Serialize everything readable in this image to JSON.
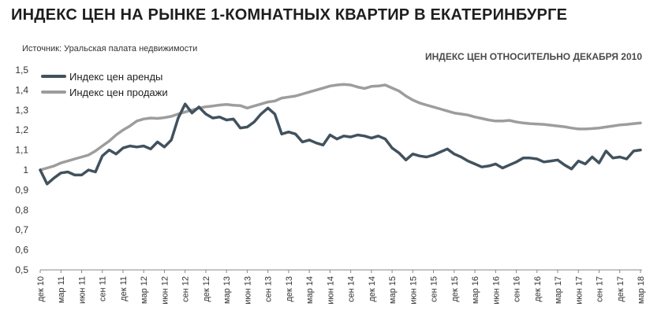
{
  "header": {
    "title": "ИНДЕКС ЦЕН НА РЫНКЕ 1-КОМНАТНЫХ КВАРТИР В ЕКАТЕРИНБУРГЕ",
    "source": "Источник: Уральская палата недвижимости",
    "subtitle": "ИНДЕКС ЦЕН ОТНОСИТЕЛЬНО ДЕКАБРЯ 2010"
  },
  "chart_data": {
    "type": "line",
    "title": "ИНДЕКС ЦЕН НА РЫНКЕ 1-КОМНАТНЫХ КВАРТИР В ЕКАТЕРИНБУРГЕ",
    "subtitle": "ИНДЕКС ЦЕН ОТНОСИТЕЛЬНО ДЕКАБРЯ 2010",
    "xlabel": "",
    "ylabel": "",
    "ylim": [
      0.5,
      1.5
    ],
    "yticks": [
      0.5,
      0.6,
      0.7,
      0.8,
      0.9,
      1.0,
      1.1,
      1.2,
      1.3,
      1.4,
      1.5
    ],
    "ytick_labels": [
      "0,5",
      "0,6",
      "0,7",
      "0,8",
      "0,9",
      "1",
      "1,1",
      "1,2",
      "1,3",
      "1,4",
      "1,5"
    ],
    "grid": false,
    "legend_position": "top-left",
    "x_tick_labels": [
      "дек 10",
      "мар 11",
      "июн 11",
      "сен 11",
      "дек 11",
      "мар 12",
      "июн 12",
      "сен 12",
      "дек 12",
      "мар 13",
      "июн 13",
      "сен 13",
      "дек 13",
      "мар 14",
      "июн 14",
      "сен 14",
      "дек 14",
      "мар 15",
      "июн 15",
      "сен 15",
      "дек 15",
      "мар 16",
      "июн 16",
      "сен 16",
      "дек 16",
      "мар 17",
      "июн 17",
      "сен 17",
      "дек 17",
      "мар 18"
    ],
    "x_tick_every_months": 3,
    "x_months_total": 87,
    "series": [
      {
        "name": "Индекс цен аренды",
        "color": "#41525e",
        "values": [
          1.0,
          0.93,
          0.96,
          0.985,
          0.99,
          0.975,
          0.975,
          1.0,
          0.99,
          1.07,
          1.1,
          1.08,
          1.11,
          1.12,
          1.115,
          1.12,
          1.105,
          1.14,
          1.115,
          1.15,
          1.26,
          1.33,
          1.285,
          1.315,
          1.28,
          1.26,
          1.265,
          1.25,
          1.255,
          1.21,
          1.215,
          1.24,
          1.28,
          1.31,
          1.28,
          1.18,
          1.19,
          1.18,
          1.14,
          1.15,
          1.135,
          1.125,
          1.175,
          1.155,
          1.17,
          1.165,
          1.175,
          1.17,
          1.16,
          1.17,
          1.155,
          1.11,
          1.085,
          1.05,
          1.08,
          1.07,
          1.065,
          1.075,
          1.09,
          1.105,
          1.08,
          1.065,
          1.045,
          1.03,
          1.015,
          1.02,
          1.03,
          1.01,
          1.025,
          1.04,
          1.06,
          1.06,
          1.055,
          1.04,
          1.045,
          1.05,
          1.025,
          1.005,
          1.045,
          1.03,
          1.065,
          1.035,
          1.095,
          1.06,
          1.065,
          1.055,
          1.095,
          1.1
        ]
      },
      {
        "name": "Индекс цен продажи",
        "color": "#9d9d9d",
        "values": [
          1.0,
          1.01,
          1.02,
          1.035,
          1.045,
          1.055,
          1.065,
          1.075,
          1.095,
          1.12,
          1.145,
          1.175,
          1.2,
          1.22,
          1.245,
          1.255,
          1.26,
          1.258,
          1.262,
          1.268,
          1.28,
          1.29,
          1.3,
          1.31,
          1.316,
          1.32,
          1.325,
          1.328,
          1.324,
          1.322,
          1.31,
          1.32,
          1.33,
          1.34,
          1.345,
          1.36,
          1.365,
          1.37,
          1.38,
          1.39,
          1.4,
          1.41,
          1.42,
          1.425,
          1.428,
          1.425,
          1.415,
          1.408,
          1.418,
          1.42,
          1.425,
          1.41,
          1.395,
          1.37,
          1.35,
          1.335,
          1.325,
          1.315,
          1.305,
          1.295,
          1.285,
          1.28,
          1.275,
          1.265,
          1.258,
          1.25,
          1.245,
          1.245,
          1.248,
          1.24,
          1.235,
          1.232,
          1.23,
          1.228,
          1.224,
          1.22,
          1.216,
          1.21,
          1.205,
          1.205,
          1.207,
          1.21,
          1.215,
          1.22,
          1.225,
          1.228,
          1.232,
          1.235
        ]
      }
    ]
  }
}
